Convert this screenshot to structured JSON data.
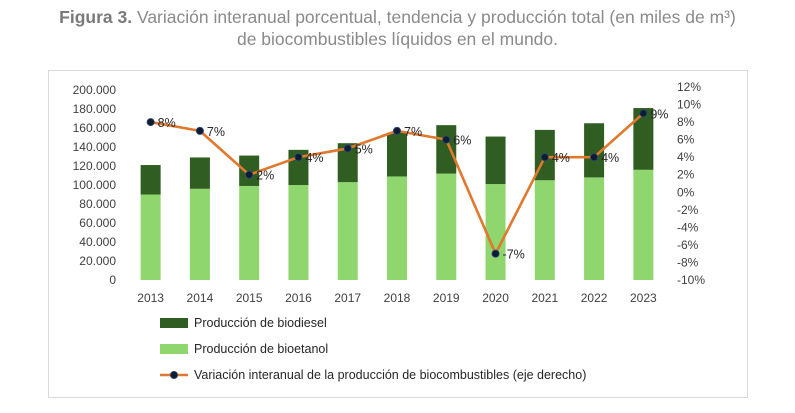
{
  "caption": {
    "figure_label": "Figura 3.",
    "line1": "Variación interanual porcentual, tendencia y producción total (en miles de m³)",
    "line2": "de biocombustibles líquidos en el mundo."
  },
  "colors": {
    "biodiesel": "#2f5d22",
    "bioetanol": "#8fd66e",
    "line": "#e0782e",
    "marker": "#0d1b33"
  },
  "chart_data": {
    "type": "bar",
    "stacked": true,
    "categories": [
      "2013",
      "2014",
      "2015",
      "2016",
      "2017",
      "2018",
      "2019",
      "2020",
      "2021",
      "2022",
      "2023"
    ],
    "series": [
      {
        "name": "Producción de bioetanol",
        "values": [
          90000,
          96000,
          99000,
          100000,
          103000,
          109000,
          112000,
          101000,
          105000,
          108000,
          116000
        ]
      },
      {
        "name": "Producción de biodiesel",
        "values": [
          31000,
          33000,
          32000,
          37000,
          41000,
          46000,
          51000,
          50000,
          53000,
          57000,
          65000
        ]
      }
    ],
    "line_series": {
      "name": "Variación interanual de la producción de biocombustibles (eje derecho)",
      "values": [
        8,
        7,
        2,
        4,
        5,
        7,
        6,
        -7,
        4,
        4,
        9
      ],
      "labels": [
        "8%",
        "7%",
        "2%",
        "4%",
        "5%",
        "7%",
        "6%",
        "-7%",
        "4%",
        "4%",
        "9%"
      ]
    },
    "y_left": {
      "range": [
        0,
        200000
      ],
      "ticks": [
        "0",
        "20.000",
        "40.000",
        "60.000",
        "80.000",
        "100.000",
        "120.000",
        "140.000",
        "160.000",
        "180.000",
        "200.000"
      ]
    },
    "y_right": {
      "range": [
        -10,
        12
      ],
      "ticks": [
        "-10%",
        "-8%",
        "-6%",
        "-4%",
        "-2%",
        "0%",
        "2%",
        "4%",
        "6%",
        "8%",
        "10%",
        "12%"
      ]
    },
    "legend": [
      "Producción de biodiesel",
      "Producción de bioetanol",
      "Variación interanual de la producción de biocombustibles (eje derecho)"
    ]
  }
}
